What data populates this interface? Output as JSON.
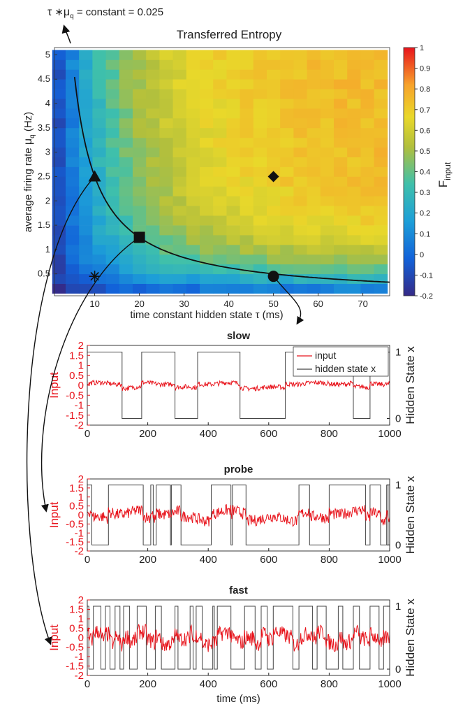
{
  "annotation": {
    "tau": "τ",
    "mu": "μ",
    "q": "q",
    "rest": " = constant = 0.025",
    "star": "∗"
  },
  "colors": {
    "input": "#e8141c",
    "hidden": "#444444"
  },
  "chart_data": [
    {
      "type": "heatmap",
      "title": "Transferred Entropy",
      "xlabel": "time constant hidden state τ (ms)",
      "ylabel": "average firing rate μq (Hz)",
      "xticks": [
        10,
        20,
        30,
        40,
        50,
        60,
        70
      ],
      "yticks": [
        0.5,
        1,
        1.5,
        2,
        2.5,
        3,
        3.5,
        4,
        4.5,
        5
      ],
      "xlim": [
        1,
        76
      ],
      "ylim": [
        0.05,
        5.15
      ],
      "grid": {
        "tau": [
          2,
          5,
          8,
          11,
          14,
          17,
          20,
          23,
          26,
          29,
          32,
          35,
          38,
          41,
          44,
          47,
          50,
          53,
          56,
          59,
          62,
          65,
          68,
          71,
          74
        ],
        "mu": [
          0.2,
          0.4,
          0.6,
          0.8,
          1.0,
          1.2,
          1.4,
          1.6,
          1.8,
          2.0,
          2.2,
          2.4,
          2.6,
          2.8,
          3.0,
          3.2,
          3.4,
          3.6,
          3.8,
          4.0,
          4.2,
          4.4,
          4.6,
          4.8,
          5.0
        ]
      },
      "colorbar": {
        "label": "F",
        "sub": "input",
        "range": [
          -0.2,
          1
        ],
        "ticks": [
          -0.2,
          -0.1,
          0,
          0.1,
          0.2,
          0.3,
          0.4,
          0.5,
          0.6,
          0.7,
          0.8,
          0.9,
          1
        ]
      },
      "curve": {
        "product": 25,
        "label": "τ ∗μq = constant = 0.025"
      },
      "markers": [
        {
          "shape": "triangle",
          "tau": 10,
          "mu": 2.5,
          "panel": "fast"
        },
        {
          "shape": "square",
          "tau": 20,
          "mu": 1.25,
          "panel": "probe"
        },
        {
          "shape": "circle",
          "tau": 50,
          "mu": 0.45,
          "panel": "slow"
        },
        {
          "shape": "asterisk",
          "tau": 10,
          "mu": 0.45
        },
        {
          "shape": "diamond",
          "tau": 50,
          "mu": 2.5
        }
      ]
    },
    {
      "type": "line",
      "title": "slow",
      "xlabel": "",
      "ylabel_left": "Input",
      "ylabel_right": "Hidden State x",
      "xlim": [
        0,
        1000
      ],
      "ylim_left": [
        -2,
        2
      ],
      "ylim_right": [
        -0.1,
        1.1
      ],
      "xticks": [
        0,
        200,
        400,
        600,
        800,
        1000
      ],
      "yticks_left": [
        -2,
        -1.5,
        -1,
        -0.5,
        0,
        0.5,
        1,
        1.5,
        2
      ],
      "yticks_right": [
        0,
        1
      ],
      "legend": [
        "input",
        "hidden state x"
      ],
      "hidden_switches": [
        115,
        180,
        290,
        365,
        505,
        655,
        880,
        935
      ],
      "input_noise": 0.12
    },
    {
      "type": "line",
      "title": "probe",
      "xlabel": "",
      "ylabel_left": "Input",
      "ylabel_right": "Hidden State x",
      "xlim": [
        0,
        1000
      ],
      "ylim_left": [
        -2,
        2
      ],
      "ylim_right": [
        -0.1,
        1.1
      ],
      "xticks": [
        0,
        200,
        400,
        600,
        800,
        1000
      ],
      "yticks_left": [
        -2,
        -1.5,
        -1,
        -0.5,
        0,
        0.5,
        1,
        1.5,
        2
      ],
      "yticks_right": [
        0,
        1
      ],
      "hidden_switches": [
        15,
        70,
        185,
        210,
        218,
        228,
        275,
        278,
        310,
        410,
        475,
        480,
        525,
        700,
        735,
        800,
        920,
        935,
        970,
        990,
        995,
        1000
      ],
      "input_noise": 0.32
    },
    {
      "type": "line",
      "title": "fast",
      "xlabel": "time (ms)",
      "ylabel_left": "Input",
      "ylabel_right": "Hidden State x",
      "xlim": [
        0,
        1000
      ],
      "ylim_left": [
        -2,
        2
      ],
      "ylim_right": [
        -0.1,
        1.1
      ],
      "xticks": [
        0,
        200,
        400,
        600,
        800,
        1000
      ],
      "yticks_left": [
        -2,
        -1.5,
        -1,
        -0.5,
        0,
        0.5,
        1,
        1.5,
        2
      ],
      "yticks_right": [
        0,
        1
      ],
      "hidden_switches": [
        5,
        20,
        45,
        60,
        75,
        92,
        108,
        120,
        140,
        165,
        195,
        225,
        245,
        290,
        300,
        340,
        350,
        360,
        380,
        415,
        420,
        430,
        475,
        520,
        555,
        575,
        595,
        615,
        680,
        700,
        745,
        760,
        790,
        830,
        845,
        880,
        900,
        935,
        965,
        980
      ],
      "input_noise": 0.42
    }
  ]
}
